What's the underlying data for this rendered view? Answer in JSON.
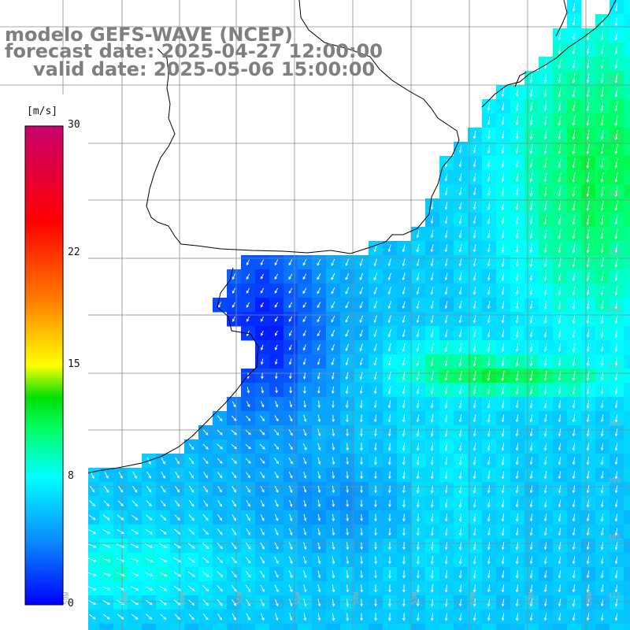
{
  "header": {
    "line1": "modelo GEFS-WAVE (NCEP)",
    "line2": "forecast date: 2025-04-27 12:00:00",
    "line3": "valid date: 2025-05-06 15:00:00"
  },
  "colorbar": {
    "unit": "[m/s]",
    "min": 0,
    "max": 30,
    "ticks": [
      {
        "label": "30",
        "value": 30
      },
      {
        "label": "22",
        "value": 22
      },
      {
        "label": "15",
        "value": 15
      },
      {
        "label": "8",
        "value": 8
      },
      {
        "label": "0",
        "value": 0
      }
    ],
    "stops": [
      {
        "value": 0,
        "color": "#0000ff"
      },
      {
        "value": 4,
        "color": "#0a8cff"
      },
      {
        "value": 8,
        "color": "#00ffff"
      },
      {
        "value": 11,
        "color": "#00ff66"
      },
      {
        "value": 13,
        "color": "#00e000"
      },
      {
        "value": 15,
        "color": "#ffff00"
      },
      {
        "value": 19,
        "color": "#ff8000"
      },
      {
        "value": 24,
        "color": "#ff0000"
      },
      {
        "value": 30,
        "color": "#c8006e"
      }
    ]
  },
  "axes": {
    "lat_labels": [
      "32S",
      "33S",
      "34S",
      "35S",
      "36S",
      "37S",
      "38S",
      "39S",
      "40S",
      "41S"
    ],
    "lon_labels": [
      "59W",
      "58W",
      "57W",
      "56W",
      "55W",
      "54W",
      "53W",
      "52W",
      "51W",
      "50W"
    ]
  },
  "colors": {
    "grid": "#888888",
    "coast": "#000000",
    "land": "#ffffff",
    "header": "#7f7f7f",
    "arrow": "#ffffff"
  }
}
